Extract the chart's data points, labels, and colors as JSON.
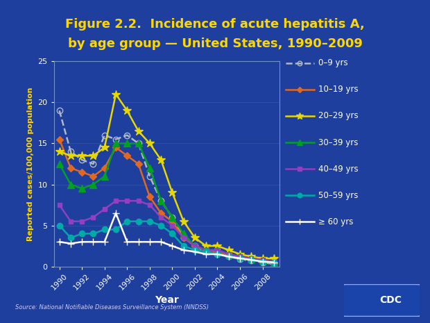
{
  "title_line1": "Figure 2.2.  Incidence of acute hepatitis A,",
  "title_line2": "by age group — United States, 1990–2009",
  "xlabel": "Year",
  "ylabel": "Reported cases/100,000 population",
  "source": "Source: National Notifiable Diseases Surveillance System (NNDSS)",
  "background_outer": "#1e3f9e",
  "background_plot": "#1e3f9e",
  "title_color": "#ffd700",
  "axis_label_color": "#ffd700",
  "tick_label_color": "#ffffff",
  "grid_color": "#3a5ab0",
  "years": [
    1990,
    1991,
    1992,
    1993,
    1994,
    1995,
    1996,
    1997,
    1998,
    1999,
    2000,
    2001,
    2002,
    2003,
    2004,
    2005,
    2006,
    2007,
    2008,
    2009
  ],
  "series": {
    "0-9 yrs": {
      "values": [
        19.0,
        14.0,
        13.0,
        12.5,
        16.0,
        15.5,
        16.0,
        15.0,
        11.0,
        8.0,
        6.0,
        3.5,
        2.5,
        1.8,
        1.5,
        1.2,
        0.9,
        0.7,
        0.5,
        0.3
      ],
      "color": "#b0b8c8",
      "linestyle": "--",
      "marker": "o",
      "markerfacecolor": "none",
      "markersize": 6,
      "linewidth": 1.8
    },
    "10-19 yrs": {
      "values": [
        15.5,
        12.0,
        11.5,
        11.0,
        12.0,
        14.5,
        13.5,
        12.5,
        8.5,
        6.5,
        5.5,
        3.5,
        2.5,
        2.0,
        1.8,
        1.3,
        1.0,
        0.8,
        0.6,
        0.5
      ],
      "color": "#e06820",
      "linestyle": "-",
      "marker": "D",
      "markerfacecolor": "#e06820",
      "markersize": 5,
      "linewidth": 1.8
    },
    "20-29 yrs": {
      "values": [
        14.0,
        13.5,
        13.5,
        13.5,
        14.5,
        21.0,
        19.0,
        16.5,
        15.0,
        13.0,
        9.0,
        5.5,
        3.5,
        2.5,
        2.5,
        2.0,
        1.5,
        1.2,
        1.0,
        0.96
      ],
      "color": "#e8d800",
      "linestyle": "-",
      "marker": "*",
      "markerfacecolor": "#e8d800",
      "markersize": 9,
      "linewidth": 1.8
    },
    "30-39 yrs": {
      "values": [
        12.5,
        10.0,
        9.5,
        10.0,
        11.0,
        15.0,
        15.0,
        15.0,
        12.0,
        8.0,
        6.0,
        4.0,
        2.5,
        2.0,
        2.0,
        1.5,
        1.2,
        0.9,
        0.7,
        0.5
      ],
      "color": "#00a020",
      "linestyle": "-",
      "marker": "^",
      "markerfacecolor": "#00a020",
      "markersize": 7,
      "linewidth": 1.8
    },
    "40-49 yrs": {
      "values": [
        7.5,
        5.5,
        5.5,
        6.0,
        7.0,
        8.0,
        8.0,
        8.0,
        7.5,
        6.0,
        5.0,
        3.5,
        2.5,
        2.0,
        2.0,
        1.5,
        1.2,
        1.0,
        0.8,
        0.6
      ],
      "color": "#9040c0",
      "linestyle": "-",
      "marker": "s",
      "markerfacecolor": "#9040c0",
      "markersize": 5,
      "linewidth": 1.8
    },
    "50-59 yrs": {
      "values": [
        5.0,
        3.5,
        4.0,
        4.0,
        4.5,
        4.5,
        5.5,
        5.5,
        5.5,
        5.0,
        4.0,
        2.5,
        2.0,
        1.8,
        1.5,
        1.2,
        1.0,
        0.8,
        0.6,
        0.5
      ],
      "color": "#00aaaa",
      "linestyle": "-",
      "marker": "o",
      "markerfacecolor": "#00aaaa",
      "markersize": 6,
      "linewidth": 1.8
    },
    "≥ 60 yrs": {
      "values": [
        3.0,
        2.8,
        3.0,
        3.0,
        3.0,
        6.5,
        3.0,
        3.0,
        3.0,
        3.0,
        2.5,
        2.0,
        1.8,
        1.5,
        1.5,
        1.2,
        1.0,
        0.8,
        0.6,
        0.5
      ],
      "color": "#ffffff",
      "linestyle": "-",
      "marker": "+",
      "markerfacecolor": "#ffffff",
      "markersize": 7,
      "linewidth": 1.8
    }
  },
  "ylim": [
    0,
    25
  ],
  "yticks": [
    0,
    5,
    10,
    15,
    20,
    25
  ],
  "xticks": [
    1990,
    1992,
    1994,
    1996,
    1998,
    2000,
    2002,
    2004,
    2006,
    2008
  ],
  "legend_labels": [
    "0–9 yrs",
    "10–19 yrs",
    "20–29 yrs",
    "30–39 yrs",
    "40–49 yrs",
    "50–59 yrs",
    "≥ 60 yrs"
  ],
  "legend_keys": [
    "0-9 yrs",
    "10-19 yrs",
    "20-29 yrs",
    "30-39 yrs",
    "40-49 yrs",
    "50-59 yrs",
    "≥ 60 yrs"
  ]
}
